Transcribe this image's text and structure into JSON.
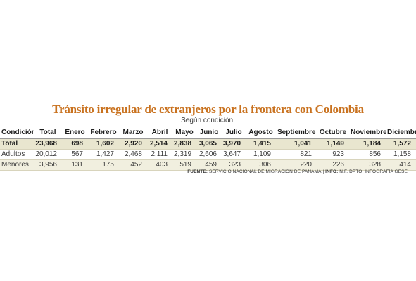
{
  "title": "Tránsito irregular de extranjeros por la frontera con Colombia",
  "subtitle": "Según condición.",
  "columns": [
    "Condición",
    "Total",
    "Enero",
    "Febrero",
    "Marzo",
    "Abril",
    "Mayo",
    "Junio",
    "Julio",
    "Agosto",
    "Septiembre",
    "Octubre",
    "Noviembre",
    "Diciembre"
  ],
  "rows": [
    {
      "label": "Total",
      "cells": [
        "23,968",
        "698",
        "1,602",
        "2,920",
        "2,514",
        "2,838",
        "3,065",
        "3,970",
        "1,415",
        "1,041",
        "1,149",
        "1,184",
        "1,572"
      ]
    },
    {
      "label": "Adultos",
      "cells": [
        "20,012",
        "567",
        "1,427",
        "2,468",
        "2,111",
        "2,319",
        "2,606",
        "3,647",
        "1,109",
        "821",
        "923",
        "856",
        "1,158"
      ]
    },
    {
      "label": "Menores",
      "cells": [
        "3,956",
        "131",
        "175",
        "452",
        "403",
        "519",
        "459",
        "323",
        "306",
        "220",
        "226",
        "328",
        "414"
      ]
    }
  ],
  "source": {
    "label1": "FUENTE:",
    "text1": "SERVICIO NACIONAL DE MIGRACIÓN DE PANAMÁ",
    "sep": "|",
    "label2": "INFO:",
    "text2": "N.F. DPTO. INFOGRAFÍA GESE"
  },
  "chart_data": {
    "type": "table",
    "title": "Tránsito irregular de extranjeros por la frontera con Colombia",
    "subtitle": "Según condición.",
    "categories": [
      "Total",
      "Enero",
      "Febrero",
      "Marzo",
      "Abril",
      "Mayo",
      "Junio",
      "Julio",
      "Agosto",
      "Septiembre",
      "Octubre",
      "Noviembre",
      "Diciembre"
    ],
    "series": [
      {
        "name": "Total",
        "values": [
          23968,
          698,
          1602,
          2920,
          2514,
          2838,
          3065,
          3970,
          1415,
          1041,
          1149,
          1184,
          1572
        ]
      },
      {
        "name": "Adultos",
        "values": [
          20012,
          567,
          1427,
          2468,
          2111,
          2319,
          2606,
          3647,
          1109,
          821,
          923,
          856,
          1158
        ]
      },
      {
        "name": "Menores",
        "values": [
          3956,
          131,
          175,
          452,
          403,
          519,
          459,
          323,
          306,
          220,
          226,
          328,
          414
        ]
      }
    ]
  }
}
